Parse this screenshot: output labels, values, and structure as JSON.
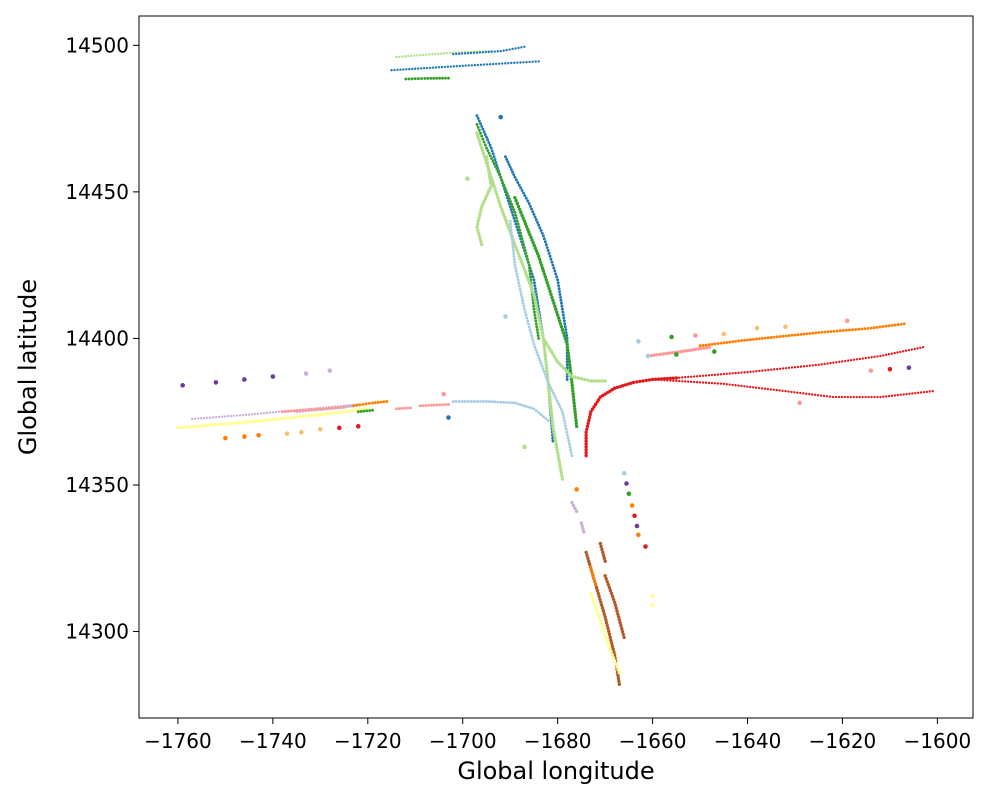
{
  "chart_data": {
    "type": "scatter",
    "title": "",
    "xlabel": "Global longitude",
    "ylabel": "Global latitude",
    "xlim": [
      -1768.2,
      -1592.5
    ],
    "ylim": [
      14270.5,
      14510.0
    ],
    "xticks": [
      -1760,
      -1740,
      -1720,
      -1700,
      -1680,
      -1660,
      -1640,
      -1620,
      -1600
    ],
    "yticks": [
      14300,
      14350,
      14400,
      14450,
      14500
    ],
    "xtick_labels": [
      "−1760",
      "−1740",
      "−1720",
      "−1700",
      "−1680",
      "−1660",
      "−1640",
      "−1620",
      "−1600"
    ],
    "ytick_labels": [
      "14300",
      "14350",
      "14400",
      "14450",
      "14500"
    ],
    "grid": false,
    "legend": "none",
    "palette": {
      "light_blue": "#a6cee3",
      "blue": "#1f78b4",
      "light_green": "#b2df8a",
      "green": "#33a02c",
      "pink": "#fb9a99",
      "red": "#e31a1c",
      "light_orange": "#fdbf6f",
      "orange": "#ff7f00",
      "lavender": "#cab2d6",
      "purple": "#6a3d9a",
      "yellow": "#ffff99",
      "brown": "#b15928"
    },
    "series": [
      {
        "color": "#b2df8a",
        "size": 2,
        "path": [
          [
            -1714,
            14496
          ],
          [
            -1702,
            14497.5
          ],
          [
            -1694,
            14498
          ]
        ]
      },
      {
        "color": "#1f78b4",
        "size": 2,
        "path": [
          [
            -1702,
            14497
          ],
          [
            -1692,
            14498
          ],
          [
            -1687,
            14499.5
          ]
        ]
      },
      {
        "color": "#1f78b4",
        "size": 2,
        "path": [
          [
            -1715,
            14491.5
          ],
          [
            -1700,
            14493
          ],
          [
            -1684,
            14494.5
          ]
        ]
      },
      {
        "color": "#33a02c",
        "size": 2.5,
        "path": [
          [
            -1712,
            14488.5
          ],
          [
            -1708,
            14488.7
          ],
          [
            -1703,
            14488.8
          ]
        ]
      },
      {
        "color": "#1f78b4",
        "size": 2.5,
        "path": [
          [
            -1697,
            14476
          ],
          [
            -1694,
            14465
          ],
          [
            -1691,
            14450
          ],
          [
            -1688,
            14435
          ],
          [
            -1685,
            14420
          ],
          [
            -1683,
            14400
          ],
          [
            -1682,
            14385
          ],
          [
            -1681,
            14365
          ]
        ]
      },
      {
        "color": "#33a02c",
        "size": 2.5,
        "path": [
          [
            -1697,
            14473
          ],
          [
            -1695,
            14465
          ],
          [
            -1692,
            14455
          ],
          [
            -1689,
            14443
          ],
          [
            -1686,
            14425
          ],
          [
            -1685,
            14410
          ],
          [
            -1684,
            14400
          ]
        ]
      },
      {
        "color": "#b2df8a",
        "size": 3,
        "path": [
          [
            -1697,
            14470
          ],
          [
            -1695,
            14460
          ],
          [
            -1692,
            14445
          ],
          [
            -1689,
            14432
          ],
          [
            -1685,
            14415
          ],
          [
            -1683,
            14400
          ],
          [
            -1682,
            14385
          ],
          [
            -1681,
            14370
          ],
          [
            -1679,
            14352
          ]
        ]
      },
      {
        "color": "#b2df8a",
        "size": 3,
        "path": [
          [
            -1695,
            14462
          ],
          [
            -1694,
            14452
          ],
          [
            -1696,
            14445
          ],
          [
            -1697,
            14438
          ],
          [
            -1696,
            14432
          ]
        ]
      },
      {
        "color": "#1f78b4",
        "size": 2.5,
        "path": [
          [
            -1691,
            14462
          ],
          [
            -1689,
            14455
          ],
          [
            -1686,
            14446
          ],
          [
            -1683,
            14435
          ],
          [
            -1680,
            14420
          ],
          [
            -1678,
            14400
          ],
          [
            -1678,
            14386
          ]
        ]
      },
      {
        "color": "#33a02c",
        "size": 3,
        "path": [
          [
            -1689,
            14448
          ],
          [
            -1687,
            14440
          ],
          [
            -1684,
            14428
          ],
          [
            -1682,
            14418
          ],
          [
            -1680,
            14408
          ],
          [
            -1678,
            14398
          ],
          [
            -1677,
            14385
          ],
          [
            -1676,
            14370
          ]
        ]
      },
      {
        "color": "#a6cee3",
        "size": 2.5,
        "path": [
          [
            -1690,
            14440
          ],
          [
            -1689,
            14425
          ],
          [
            -1687,
            14410
          ],
          [
            -1685,
            14398
          ],
          [
            -1682,
            14385
          ],
          [
            -1679,
            14375
          ],
          [
            -1677,
            14360
          ]
        ]
      },
      {
        "color": "#b2df8a",
        "size": 3,
        "path": [
          [
            -1683,
            14400
          ],
          [
            -1680,
            14392
          ],
          [
            -1677,
            14387
          ],
          [
            -1673,
            14385.5
          ],
          [
            -1670,
            14385.5
          ]
        ]
      },
      {
        "color": "#a6cee3",
        "size": 2.5,
        "path": [
          [
            -1702,
            14378.5
          ],
          [
            -1695,
            14378.5
          ],
          [
            -1689,
            14378
          ],
          [
            -1685,
            14376
          ],
          [
            -1682,
            14372
          ]
        ]
      },
      {
        "color": "#e31a1c",
        "size": 3,
        "path": [
          [
            -1674,
            14360
          ],
          [
            -1674,
            14368
          ],
          [
            -1673,
            14375
          ],
          [
            -1671,
            14380
          ],
          [
            -1668,
            14383
          ],
          [
            -1664,
            14385
          ],
          [
            -1660,
            14386
          ],
          [
            -1655,
            14386.5
          ]
        ]
      },
      {
        "color": "#e31a1c",
        "size": 2,
        "path": [
          [
            -1655,
            14386.5
          ],
          [
            -1640,
            14388.5
          ],
          [
            -1625,
            14391
          ],
          [
            -1612,
            14394
          ],
          [
            -1603,
            14397
          ]
        ]
      },
      {
        "color": "#e31a1c",
        "size": 2,
        "path": [
          [
            -1660,
            14386
          ],
          [
            -1645,
            14384.5
          ],
          [
            -1632,
            14382
          ],
          [
            -1622,
            14380
          ],
          [
            -1612,
            14380
          ],
          [
            -1601,
            14382
          ]
        ]
      },
      {
        "color": "#fb9a99",
        "size": 3,
        "path": [
          [
            -1661,
            14394
          ],
          [
            -1654,
            14395.5
          ],
          [
            -1648,
            14397
          ]
        ]
      },
      {
        "color": "#ff7f00",
        "size": 2.5,
        "path": [
          [
            -1650,
            14397.5
          ],
          [
            -1640,
            14399.5
          ],
          [
            -1625,
            14402
          ],
          [
            -1614,
            14403.5
          ],
          [
            -1607,
            14405
          ]
        ]
      },
      {
        "color": "#cab2d6",
        "size": 2,
        "path": [
          [
            -1757,
            14372.5
          ],
          [
            -1745,
            14374
          ],
          [
            -1735,
            14375.5
          ],
          [
            -1722,
            14377.5
          ]
        ]
      },
      {
        "color": "#ffff99",
        "size": 3,
        "path": [
          [
            -1760,
            14369.5
          ],
          [
            -1745,
            14371.5
          ],
          [
            -1730,
            14374
          ],
          [
            -1720,
            14376
          ]
        ]
      },
      {
        "color": "#cab2d6",
        "size": 2.5,
        "path": [
          [
            -1735,
            14375
          ],
          [
            -1728,
            14376
          ],
          [
            -1723,
            14377
          ]
        ]
      },
      {
        "color": "#ff7f00",
        "size": 2.5,
        "path": [
          [
            -1723,
            14377
          ],
          [
            -1719,
            14378
          ],
          [
            -1716,
            14378.5
          ]
        ]
      },
      {
        "color": "#fb9a99",
        "size": 2.5,
        "path": [
          [
            -1738,
            14375
          ],
          [
            -1730,
            14376
          ],
          [
            -1725,
            14376.5
          ]
        ]
      },
      {
        "color": "#33a02c",
        "size": 2.5,
        "path": [
          [
            -1722,
            14375
          ],
          [
            -1719,
            14375.5
          ]
        ]
      },
      {
        "color": "#fb9a99",
        "size": 2.5,
        "path": [
          [
            -1714,
            14376
          ],
          [
            -1711,
            14376.3
          ]
        ]
      },
      {
        "color": "#fb9a99",
        "size": 2.5,
        "path": [
          [
            -1709,
            14377
          ],
          [
            -1703,
            14377.5
          ]
        ]
      },
      {
        "color": "#cab2d6",
        "size": 3,
        "path": [
          [
            -1677,
            14344
          ],
          [
            -1676,
            14341
          ]
        ]
      },
      {
        "color": "#cab2d6",
        "size": 3,
        "path": [
          [
            -1675,
            14337
          ],
          [
            -1674.5,
            14334
          ]
        ]
      },
      {
        "color": "#b15928",
        "size": 3,
        "path": [
          [
            -1674,
            14327
          ],
          [
            -1672,
            14316
          ],
          [
            -1670,
            14305
          ],
          [
            -1668,
            14292
          ],
          [
            -1667,
            14282
          ]
        ]
      },
      {
        "color": "#b15928",
        "size": 3,
        "path": [
          [
            -1671,
            14330
          ],
          [
            -1670,
            14324
          ]
        ]
      },
      {
        "color": "#b15928",
        "size": 3,
        "path": [
          [
            -1670,
            14319
          ],
          [
            -1668,
            14310
          ],
          [
            -1666,
            14298
          ]
        ]
      },
      {
        "color": "#ffff99",
        "size": 3,
        "path": [
          [
            -1673,
            14313
          ],
          [
            -1671,
            14304
          ],
          [
            -1669,
            14294
          ],
          [
            -1667,
            14286
          ]
        ]
      },
      {
        "color": "#ff7f00",
        "size": 2.5,
        "path": [
          [
            -1673,
            14322
          ],
          [
            -1672,
            14316
          ]
        ]
      }
    ],
    "points": [
      {
        "x": -1759,
        "y": 14384,
        "color": "#6a3d9a",
        "size": 4
      },
      {
        "x": -1752,
        "y": 14385,
        "color": "#6a3d9a",
        "size": 4
      },
      {
        "x": -1746,
        "y": 14386,
        "color": "#6a3d9a",
        "size": 4
      },
      {
        "x": -1740,
        "y": 14387,
        "color": "#6a3d9a",
        "size": 4
      },
      {
        "x": -1733,
        "y": 14388,
        "color": "#cab2d6",
        "size": 4
      },
      {
        "x": -1728,
        "y": 14389,
        "color": "#cab2d6",
        "size": 4
      },
      {
        "x": -1750,
        "y": 14366,
        "color": "#ff7f00",
        "size": 4
      },
      {
        "x": -1746,
        "y": 14366.5,
        "color": "#ff7f00",
        "size": 4
      },
      {
        "x": -1743,
        "y": 14367,
        "color": "#ff7f00",
        "size": 4
      },
      {
        "x": -1737,
        "y": 14367.5,
        "color": "#fdbf6f",
        "size": 4
      },
      {
        "x": -1734,
        "y": 14368,
        "color": "#fdbf6f",
        "size": 4
      },
      {
        "x": -1730,
        "y": 14369,
        "color": "#fdbf6f",
        "size": 4
      },
      {
        "x": -1726,
        "y": 14369.5,
        "color": "#e31a1c",
        "size": 4
      },
      {
        "x": -1722,
        "y": 14370,
        "color": "#e31a1c",
        "size": 4
      },
      {
        "x": -1704,
        "y": 14381,
        "color": "#fb9a99",
        "size": 4
      },
      {
        "x": -1703,
        "y": 14373,
        "color": "#1f78b4",
        "size": 4
      },
      {
        "x": -1699,
        "y": 14454.5,
        "color": "#b2df8a",
        "size": 4
      },
      {
        "x": -1692,
        "y": 14475.5,
        "color": "#1f78b4",
        "size": 4
      },
      {
        "x": -1691,
        "y": 14407.5,
        "color": "#a6cee3",
        "size": 4
      },
      {
        "x": -1687,
        "y": 14363,
        "color": "#b2df8a",
        "size": 4
      },
      {
        "x": -1676,
        "y": 14348.5,
        "color": "#ff7f00",
        "size": 4
      },
      {
        "x": -1663,
        "y": 14399,
        "color": "#a6cee3",
        "size": 4
      },
      {
        "x": -1661,
        "y": 14394,
        "color": "#a6cee3",
        "size": 4
      },
      {
        "x": -1656,
        "y": 14400.5,
        "color": "#33a02c",
        "size": 4
      },
      {
        "x": -1655,
        "y": 14394.5,
        "color": "#33a02c",
        "size": 4
      },
      {
        "x": -1651,
        "y": 14401,
        "color": "#fb9a99",
        "size": 4
      },
      {
        "x": -1647,
        "y": 14395.5,
        "color": "#33a02c",
        "size": 4
      },
      {
        "x": -1645,
        "y": 14401.5,
        "color": "#fdbf6f",
        "size": 4
      },
      {
        "x": -1638,
        "y": 14403.5,
        "color": "#fdbf6f",
        "size": 4
      },
      {
        "x": -1632,
        "y": 14404,
        "color": "#fdbf6f",
        "size": 4
      },
      {
        "x": -1619,
        "y": 14406,
        "color": "#fb9a99",
        "size": 4
      },
      {
        "x": -1614,
        "y": 14389,
        "color": "#fb9a99",
        "size": 4
      },
      {
        "x": -1610,
        "y": 14389.5,
        "color": "#e31a1c",
        "size": 4
      },
      {
        "x": -1606,
        "y": 14390,
        "color": "#6a3d9a",
        "size": 4
      },
      {
        "x": -1629,
        "y": 14378,
        "color": "#fb9a99",
        "size": 4
      },
      {
        "x": -1666,
        "y": 14354,
        "color": "#a6cee3",
        "size": 4
      },
      {
        "x": -1665.5,
        "y": 14350.5,
        "color": "#6a3d9a",
        "size": 4
      },
      {
        "x": -1665,
        "y": 14347,
        "color": "#33a02c",
        "size": 4
      },
      {
        "x": -1664.3,
        "y": 14343,
        "color": "#ff7f00",
        "size": 4
      },
      {
        "x": -1663.8,
        "y": 14339.5,
        "color": "#e31a1c",
        "size": 4
      },
      {
        "x": -1663.3,
        "y": 14336,
        "color": "#6a3d9a",
        "size": 4
      },
      {
        "x": -1663,
        "y": 14333,
        "color": "#ff7f00",
        "size": 4
      },
      {
        "x": -1661.5,
        "y": 14329,
        "color": "#e31a1c",
        "size": 4
      },
      {
        "x": -1660,
        "y": 14312,
        "color": "#ffff99",
        "size": 4
      },
      {
        "x": -1660,
        "y": 14309,
        "color": "#ffff99",
        "size": 4
      }
    ]
  }
}
